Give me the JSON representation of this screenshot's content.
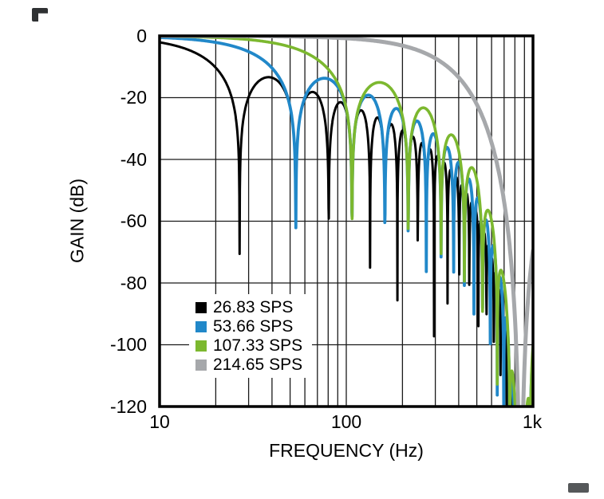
{
  "figure": {
    "background": "#FFFFFF",
    "artifacts": [
      "top-left-crop-mark",
      "bottom-right-crop-mark"
    ]
  },
  "chart_data": {
    "type": "line",
    "title": "",
    "xlabel": "FREQUENCY (Hz)",
    "ylabel": "GAIN (dB)",
    "x_scale": "log",
    "x_range": [
      10,
      1000
    ],
    "x_ticks": [
      10,
      100,
      1000
    ],
    "x_tick_labels": [
      "10",
      "100",
      "1k"
    ],
    "y_range": [
      -120,
      0
    ],
    "y_ticks": [
      0,
      -20,
      -40,
      -60,
      -80,
      -100,
      -120
    ],
    "y_tick_labels": [
      "0",
      "-20",
      "-40",
      "-60",
      "-80",
      "-100",
      "-120"
    ],
    "grid": {
      "vertical": "log minor gridlines within each decade",
      "horizontal": "every 20 dB",
      "color": "#1A1A1A"
    },
    "border_color": "#000000",
    "legend": {
      "position": "lower-left inside plot area",
      "background": "#FFFFFF"
    },
    "series": [
      {
        "label": "26.83 SPS",
        "color": "#000000",
        "stroke_width": 3.0,
        "data_rate_sps": 26.83,
        "description": "Notched comb response; nulls at multiples of the 26.83 SPS output data rate, first sidelobe approx -13 dB, steep common rolloff with deep attenuation near 858 Hz",
        "notches_hz": [
          26.83,
          53.66,
          80.49,
          107.32,
          134.15,
          160.98,
          187.81,
          214.64,
          241.47,
          268.3,
          295.13,
          321.96,
          348.79,
          375.62,
          402.45,
          429.28
        ],
        "model": {
          "sinc1_notch_hz": 26.83,
          "sinc4_notch_hz": 858.6
        }
      },
      {
        "label": "53.66 SPS",
        "color": "#2188C9",
        "stroke_width": 3.8,
        "data_rate_sps": 53.66,
        "description": "Notched comb response; nulls at multiples of the 53.66 SPS output data rate, first sidelobe approx -13 dB, steep common rolloff with deep attenuation near 858 Hz",
        "notches_hz": [
          53.66,
          107.32,
          160.98,
          214.64,
          268.3,
          321.96,
          375.62,
          429.28,
          482.94,
          536.6
        ],
        "model": {
          "sinc1_notch_hz": 53.66,
          "sinc4_notch_hz": 858.6
        }
      },
      {
        "label": "107.33 SPS",
        "color": "#7CB82F",
        "stroke_width": 3.6,
        "data_rate_sps": 107.33,
        "description": "Notched response; nulls at multiples of the 107.33 SPS output data rate with steep rolloff toward 858 Hz",
        "notches_hz": [
          107.33,
          214.66,
          321.99,
          429.32,
          536.65,
          643.98,
          751.31
        ],
        "model": {
          "sinc1_notch_hz": 107.33,
          "sinc4_notch_hz": 858.6
        }
      },
      {
        "label": "214.65 SPS",
        "color": "#A6A8AB",
        "stroke_width": 5.0,
        "data_rate_sps": 214.65,
        "description": "Smooth monotonic rolloff: approx -4 dB at 215 Hz, -16 dB at 430 Hz, deep attenuation (below -120 dB) near 858 Hz",
        "notches_hz": [
          858.6
        ],
        "model": {
          "sinc1_notch_hz": null,
          "sinc4_notch_hz": 858.6
        }
      }
    ]
  }
}
